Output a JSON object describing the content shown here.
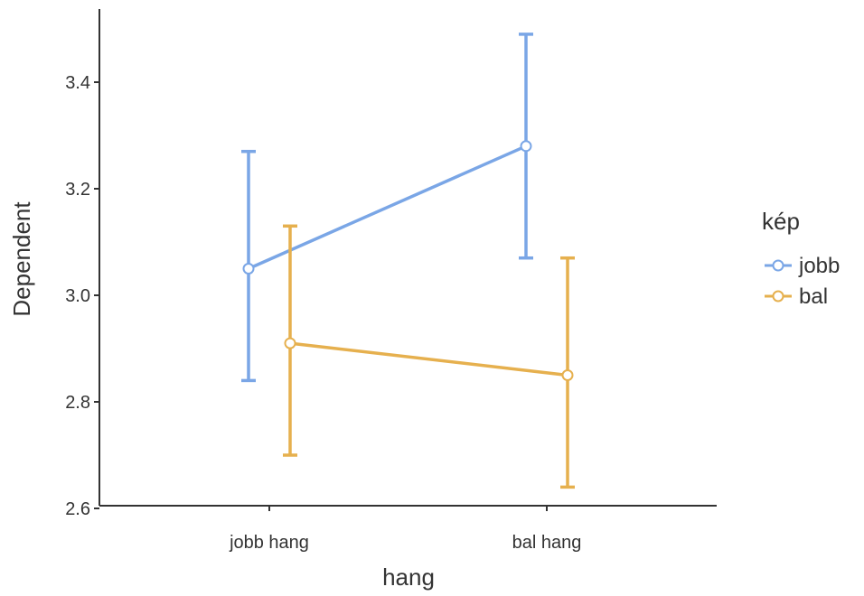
{
  "chart_data": {
    "type": "line",
    "xlabel": "hang",
    "ylabel": "Dependent",
    "categories": [
      "jobb hang",
      "bal hang"
    ],
    "ylim": [
      2.6,
      3.5
    ],
    "yticks": [
      "2.6",
      "2.8",
      "3.0",
      "3.2",
      "3.4"
    ],
    "grid": false,
    "legend": {
      "title": "kép",
      "position": "right"
    },
    "series": [
      {
        "name": "jobb",
        "color": "#7aa6e6",
        "values": [
          3.05,
          3.28
        ],
        "lower": [
          2.84,
          3.07
        ],
        "upper": [
          3.27,
          3.49
        ]
      },
      {
        "name": "bal",
        "color": "#e6b04e",
        "values": [
          2.91,
          2.85
        ],
        "lower": [
          2.7,
          2.64
        ],
        "upper": [
          3.13,
          3.07
        ]
      }
    ]
  }
}
